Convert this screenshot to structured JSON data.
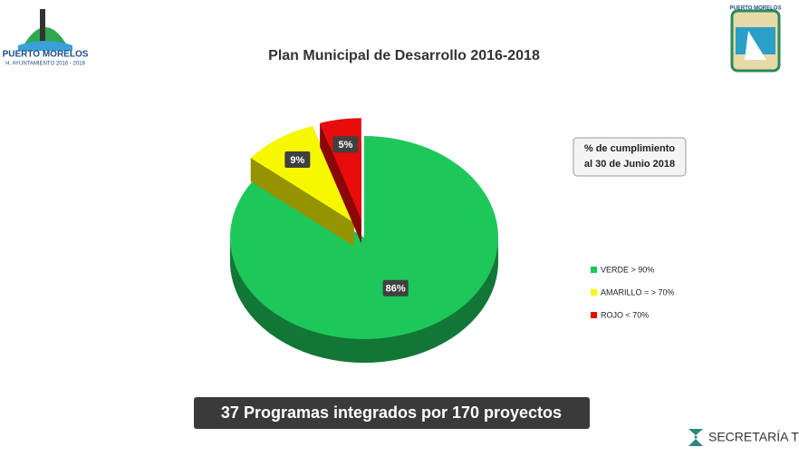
{
  "chart_data": {
    "type": "pie",
    "title": "Plan Municipal de Desarrollo 2016-2018",
    "categories": [
      "VERDE > 90%",
      "AMARILLO = > 70%",
      "ROJO < 70%"
    ],
    "values": [
      86,
      9,
      5
    ],
    "value_labels": [
      "86%",
      "9%",
      "5%"
    ],
    "colors": [
      "#1ec75a",
      "#f7f700",
      "#e80c0c"
    ],
    "annotation": [
      "% de cumplimiento",
      "al 30 de Junio 2018"
    ]
  },
  "banner": "37 Programas integrados por  170 proyectos",
  "logos": {
    "left_name": "PUERTO MORELOS",
    "left_sub": "H. AYUNTAMIENTO 2016 - 2018",
    "right_name": "PUERTO MORELOS",
    "footer": "SECRETARÍA TÉCNICA"
  }
}
